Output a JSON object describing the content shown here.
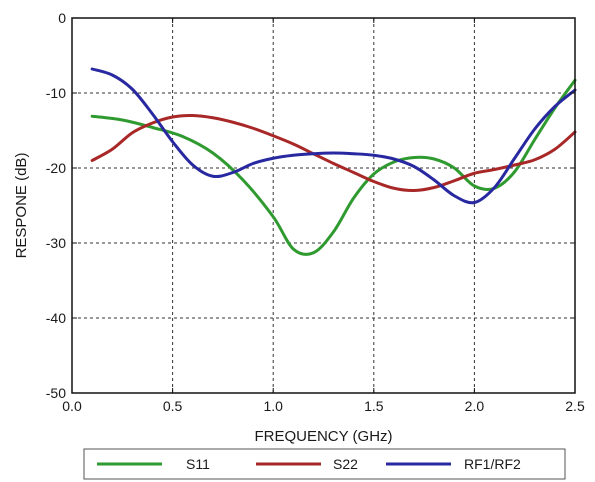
{
  "chart_data": {
    "type": "line",
    "title": "",
    "xlabel": "FREQUENCY (GHz)",
    "ylabel": "RESPONE (dB)",
    "xlim": [
      0.0,
      2.5
    ],
    "ylim": [
      -50,
      0
    ],
    "x_ticks": [
      "0.0",
      "0.5",
      "1.0",
      "1.5",
      "2.0",
      "2.5"
    ],
    "y_ticks": [
      "0",
      "-10",
      "-20",
      "-30",
      "-40",
      "-50"
    ],
    "grid": true,
    "legend_position": "bottom",
    "series": [
      {
        "name": "S11",
        "color": "#2f9a2f",
        "points": [
          [
            0.1,
            -13.1
          ],
          [
            0.25,
            -13.6
          ],
          [
            0.4,
            -14.6
          ],
          [
            0.55,
            -15.8
          ],
          [
            0.7,
            -18.0
          ],
          [
            0.85,
            -21.6
          ],
          [
            1.0,
            -26.5
          ],
          [
            1.1,
            -30.8
          ],
          [
            1.2,
            -31.3
          ],
          [
            1.3,
            -28.5
          ],
          [
            1.4,
            -24.0
          ],
          [
            1.5,
            -20.8
          ],
          [
            1.6,
            -19.2
          ],
          [
            1.7,
            -18.6
          ],
          [
            1.8,
            -18.8
          ],
          [
            1.9,
            -20.0
          ],
          [
            2.0,
            -22.4
          ],
          [
            2.1,
            -22.7
          ],
          [
            2.2,
            -20.5
          ],
          [
            2.3,
            -16.2
          ],
          [
            2.4,
            -12.0
          ],
          [
            2.5,
            -8.3
          ]
        ]
      },
      {
        "name": "S22",
        "color": "#a82828",
        "points": [
          [
            0.1,
            -19.0
          ],
          [
            0.2,
            -17.5
          ],
          [
            0.3,
            -15.3
          ],
          [
            0.4,
            -14.0
          ],
          [
            0.5,
            -13.2
          ],
          [
            0.6,
            -13.0
          ],
          [
            0.7,
            -13.3
          ],
          [
            0.8,
            -13.9
          ],
          [
            0.9,
            -14.7
          ],
          [
            1.0,
            -15.7
          ],
          [
            1.1,
            -16.8
          ],
          [
            1.2,
            -18.1
          ],
          [
            1.3,
            -19.4
          ],
          [
            1.4,
            -20.6
          ],
          [
            1.5,
            -21.8
          ],
          [
            1.6,
            -22.7
          ],
          [
            1.7,
            -23.0
          ],
          [
            1.8,
            -22.6
          ],
          [
            1.9,
            -21.7
          ],
          [
            2.0,
            -20.7
          ],
          [
            2.1,
            -20.2
          ],
          [
            2.2,
            -19.6
          ],
          [
            2.3,
            -18.9
          ],
          [
            2.4,
            -17.5
          ],
          [
            2.5,
            -15.2
          ]
        ]
      },
      {
        "name": "RF1/RF2",
        "color": "#2828a0",
        "points": [
          [
            0.1,
            -6.8
          ],
          [
            0.2,
            -7.6
          ],
          [
            0.3,
            -9.5
          ],
          [
            0.4,
            -12.8
          ],
          [
            0.5,
            -16.5
          ],
          [
            0.6,
            -19.6
          ],
          [
            0.7,
            -21.1
          ],
          [
            0.8,
            -20.6
          ],
          [
            0.9,
            -19.4
          ],
          [
            1.0,
            -18.7
          ],
          [
            1.1,
            -18.3
          ],
          [
            1.2,
            -18.1
          ],
          [
            1.3,
            -18.0
          ],
          [
            1.4,
            -18.1
          ],
          [
            1.5,
            -18.3
          ],
          [
            1.6,
            -18.8
          ],
          [
            1.7,
            -19.8
          ],
          [
            1.8,
            -21.6
          ],
          [
            1.9,
            -23.7
          ],
          [
            2.0,
            -24.6
          ],
          [
            2.1,
            -22.6
          ],
          [
            2.2,
            -18.7
          ],
          [
            2.3,
            -14.8
          ],
          [
            2.4,
            -11.8
          ],
          [
            2.5,
            -9.6
          ]
        ]
      }
    ]
  }
}
